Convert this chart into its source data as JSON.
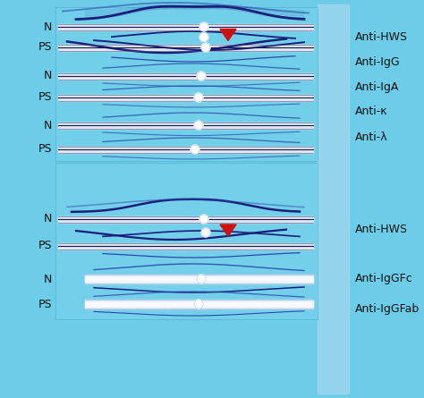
{
  "bg_color": "#6dcde8",
  "panel_bg": "#72d0ec",
  "panel2_bg": "#78d4ee",
  "right_bar_color": "#aad8f0",
  "strip_white": "#e8eef8",
  "strip_gray": "#c8d4e8",
  "strip_dark": "#18184a",
  "bow_dark": "#1a1f7a",
  "bow_mid": "#2a4aaa",
  "bow_light": "#3a6acc",
  "label_fontsize": 9,
  "label_color": "#111111",
  "fig_w": 4.74,
  "fig_h": 4.45,
  "dpi": 100,
  "p1_left_labels": [
    "N",
    "PS",
    "N",
    "PS",
    "N",
    "PS"
  ],
  "p1_right_labels": [
    "Anti-HWS",
    "Anti-IgG",
    "Anti-IgA",
    "Anti-κ",
    "Anti-λ",
    ""
  ],
  "p2_left_labels": [
    "N",
    "PS",
    "N",
    "PS"
  ],
  "p2_right_labels": [
    "Anti-HWS",
    "Anti-IgGFc",
    "Anti-IgGFab",
    ""
  ]
}
